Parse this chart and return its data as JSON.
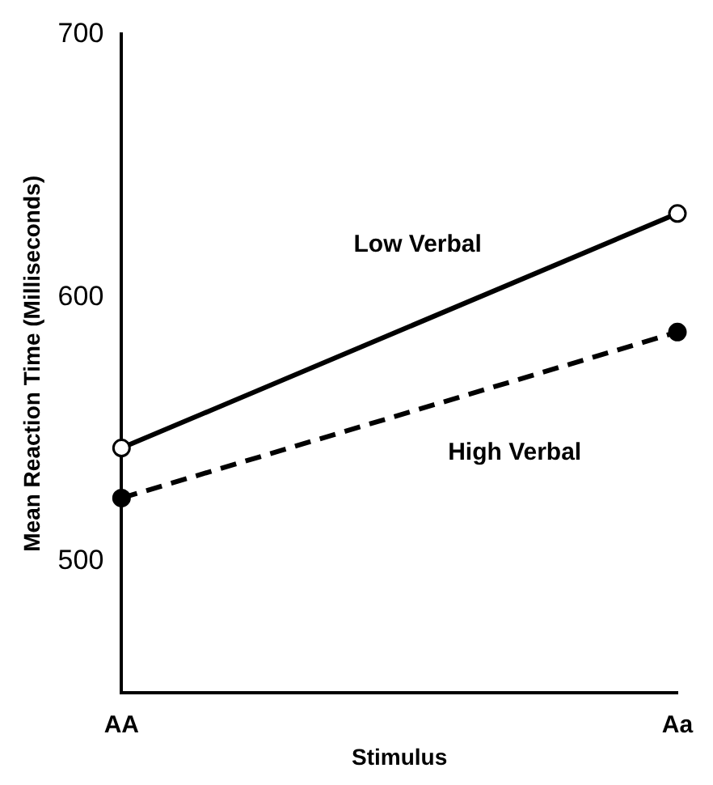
{
  "chart_data": {
    "type": "line",
    "xlabel": "Stimulus",
    "ylabel": "Mean Reaction Time (Milliseconds)",
    "categories": [
      "AA",
      "Aa"
    ],
    "series": [
      {
        "name": "Low Verbal",
        "color": "#000000",
        "values": [
          543,
          632
        ],
        "line_style": "solid"
      },
      {
        "name": "High Verbal",
        "color": "#000000",
        "values": [
          524,
          587
        ],
        "line_style": "dashed"
      }
    ],
    "ylim": [
      450,
      700
    ],
    "yticks": [
      500,
      600,
      700
    ],
    "grid": false,
    "legend": false,
    "marker": "circle"
  }
}
